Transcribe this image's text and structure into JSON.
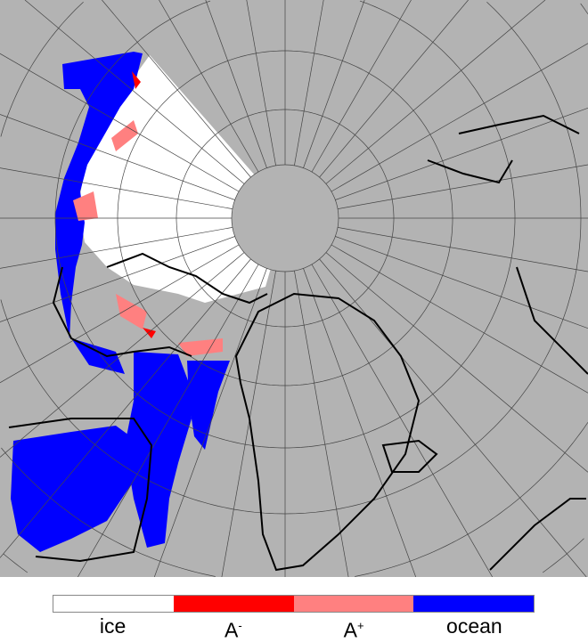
{
  "legend": {
    "items": [
      {
        "label": "ice",
        "sup": "",
        "color": "#ffffff"
      },
      {
        "label": "A",
        "sup": "-",
        "color": "#ff0000"
      },
      {
        "label": "A",
        "sup": "+",
        "color": "#ff8080"
      },
      {
        "label": "ocean",
        "sup": "",
        "color": "#0000ff"
      }
    ]
  },
  "map": {
    "land_color": "#b3b3b3",
    "coast_color": "#000000",
    "grid_color": "#444444"
  }
}
